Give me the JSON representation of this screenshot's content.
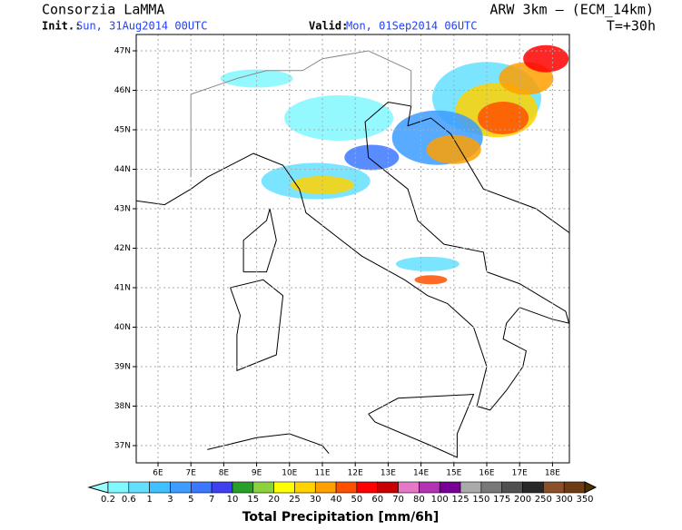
{
  "header": {
    "title": "Consorzia LaMMA",
    "init_label": "Init.:",
    "init": "Sun, 31Aug2014 00UTC",
    "valid_label": "Valid:",
    "valid": "Mon, 01Sep2014 06UTC",
    "model": "ARW 3km – (ECM_14km)",
    "lead": "T=+30h"
  },
  "map": {
    "lat_labels": [
      "47N",
      "46N",
      "45N",
      "44N",
      "43N",
      "42N",
      "41N",
      "40N",
      "39N",
      "38N",
      "37N"
    ],
    "lon_labels": [
      "6E",
      "7E",
      "8E",
      "9E",
      "10E",
      "11E",
      "12E",
      "13E",
      "14E",
      "15E",
      "16E",
      "17E",
      "18E"
    ]
  },
  "colorbar": {
    "title": "Total Precipitation [mm/6h]",
    "labels": [
      "0.2",
      "0.6",
      "1",
      "3",
      "5",
      "7",
      "10",
      "15",
      "20",
      "25",
      "30",
      "40",
      "50",
      "60",
      "70",
      "80",
      "100",
      "125",
      "150",
      "175",
      "200",
      "250",
      "300",
      "350"
    ],
    "colors": [
      "#96ffff",
      "#80f8ff",
      "#64e0ff",
      "#40c0ff",
      "#3c9cff",
      "#3c78ff",
      "#4040f0",
      "#28a028",
      "#8cd23c",
      "#ffff00",
      "#ffd200",
      "#ffa000",
      "#ff5000",
      "#ff0000",
      "#c80000",
      "#e678c8",
      "#b432b4",
      "#780096",
      "#aaaaaa",
      "#787878",
      "#505050",
      "#282828",
      "#8c5028",
      "#6e3c14",
      "#503000"
    ]
  }
}
